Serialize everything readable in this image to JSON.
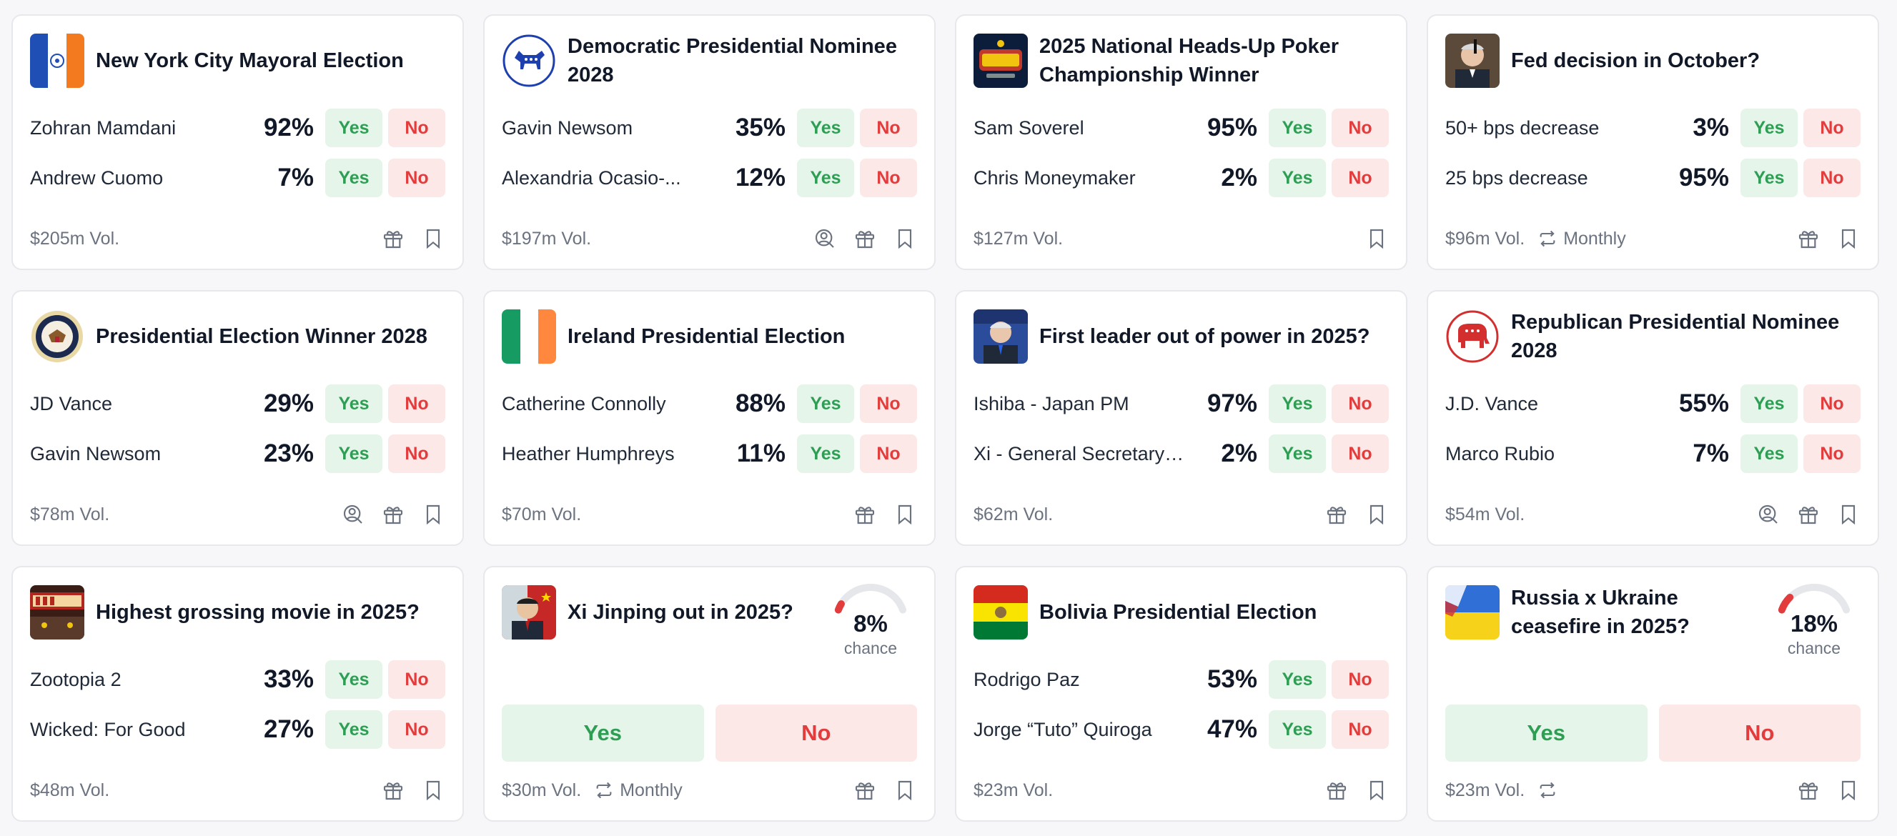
{
  "colors": {
    "yes": "#2e9e54",
    "no": "#e23c3c",
    "yes_bg": "#e5f5ea",
    "no_bg": "#fde8e8",
    "muted": "#6b7280"
  },
  "labels": {
    "yes": "Yes",
    "no": "No",
    "chance": "chance"
  },
  "cards": [
    {
      "title": "New York City Mayoral Election",
      "thumb": "nyc-flag",
      "options": [
        {
          "label": "Zohran Mamdani",
          "pct": "92%"
        },
        {
          "label": "Andrew Cuomo",
          "pct": "7%"
        }
      ],
      "volume": "$205m Vol.",
      "icons": [
        "gift-icon",
        "bookmark-icon"
      ]
    },
    {
      "title": "Democratic Presidential Nominee 2028",
      "thumb": "democrat-donkey-logo",
      "options": [
        {
          "label": "Gavin Newsom",
          "pct": "35%"
        },
        {
          "label": "Alexandria Ocasio-...",
          "pct": "12%"
        }
      ],
      "volume": "$197m Vol.",
      "icons": [
        "rewards-icon",
        "gift-icon",
        "bookmark-icon"
      ]
    },
    {
      "title": "2025 National Heads-Up Poker Championship Winner",
      "thumb": "poker-logo",
      "options": [
        {
          "label": "Sam Soverel",
          "pct": "95%"
        },
        {
          "label": "Chris Moneymaker",
          "pct": "2%"
        }
      ],
      "volume": "$127m Vol.",
      "icons": [
        "bookmark-icon"
      ]
    },
    {
      "title": "Fed decision in October?",
      "thumb": "fed-chair-photo",
      "options": [
        {
          "label": "50+ bps decrease",
          "pct": "3%"
        },
        {
          "label": "25 bps decrease",
          "pct": "95%"
        }
      ],
      "volume": "$96m Vol.",
      "recurrence": "Monthly",
      "icons": [
        "gift-icon",
        "bookmark-icon"
      ]
    },
    {
      "title": "Presidential Election Winner 2028",
      "thumb": "presidential-seal",
      "options": [
        {
          "label": "JD Vance",
          "pct": "29%"
        },
        {
          "label": "Gavin Newsom",
          "pct": "23%"
        }
      ],
      "volume": "$78m Vol.",
      "icons": [
        "rewards-icon",
        "gift-icon",
        "bookmark-icon"
      ]
    },
    {
      "title": "Ireland Presidential Election",
      "thumb": "ireland-flag",
      "options": [
        {
          "label": "Catherine Connolly",
          "pct": "88%"
        },
        {
          "label": "Heather Humphreys",
          "pct": "11%"
        }
      ],
      "volume": "$70m Vol.",
      "icons": [
        "gift-icon",
        "bookmark-icon"
      ]
    },
    {
      "title": "First leader out of power in 2025?",
      "thumb": "leader-photo",
      "options": [
        {
          "label": "Ishiba - Japan PM",
          "pct": "97%"
        },
        {
          "label": "Xi - General Secretary o...",
          "pct": "2%"
        }
      ],
      "volume": "$62m Vol.",
      "icons": [
        "gift-icon",
        "bookmark-icon"
      ]
    },
    {
      "title": "Republican Presidential Nominee 2028",
      "thumb": "republican-elephant-logo",
      "options": [
        {
          "label": "J.D. Vance",
          "pct": "55%"
        },
        {
          "label": "Marco Rubio",
          "pct": "7%"
        }
      ],
      "volume": "$54m Vol.",
      "icons": [
        "rewards-icon",
        "gift-icon",
        "bookmark-icon"
      ]
    },
    {
      "title": "Highest grossing movie in 2025?",
      "thumb": "box-office-photo",
      "options": [
        {
          "label": "Zootopia 2",
          "pct": "33%"
        },
        {
          "label": "Wicked: For Good",
          "pct": "27%"
        }
      ],
      "volume": "$48m Vol.",
      "icons": [
        "gift-icon",
        "bookmark-icon"
      ]
    },
    {
      "title": "Xi Jinping out in 2025?",
      "thumb": "xi-photo",
      "binary": true,
      "chance": "8%",
      "chance_value": 8,
      "volume": "$30m Vol.",
      "recurrence": "Monthly",
      "icons": [
        "gift-icon",
        "bookmark-icon"
      ]
    },
    {
      "title": "Bolivia Presidential Election",
      "thumb": "bolivia-flag",
      "options": [
        {
          "label": "Rodrigo Paz",
          "pct": "53%"
        },
        {
          "label": "Jorge “Tuto” Quiroga",
          "pct": "47%"
        }
      ],
      "volume": "$23m Vol.",
      "icons": [
        "gift-icon",
        "bookmark-icon"
      ]
    },
    {
      "title": "Russia x Ukraine ceasefire in 2025?",
      "thumb": "ukraine-flag-photo",
      "binary": true,
      "chance": "18%",
      "chance_value": 18,
      "volume": "$23m Vol.",
      "recurrence": "",
      "icons": [
        "gift-icon",
        "bookmark-icon"
      ]
    }
  ]
}
